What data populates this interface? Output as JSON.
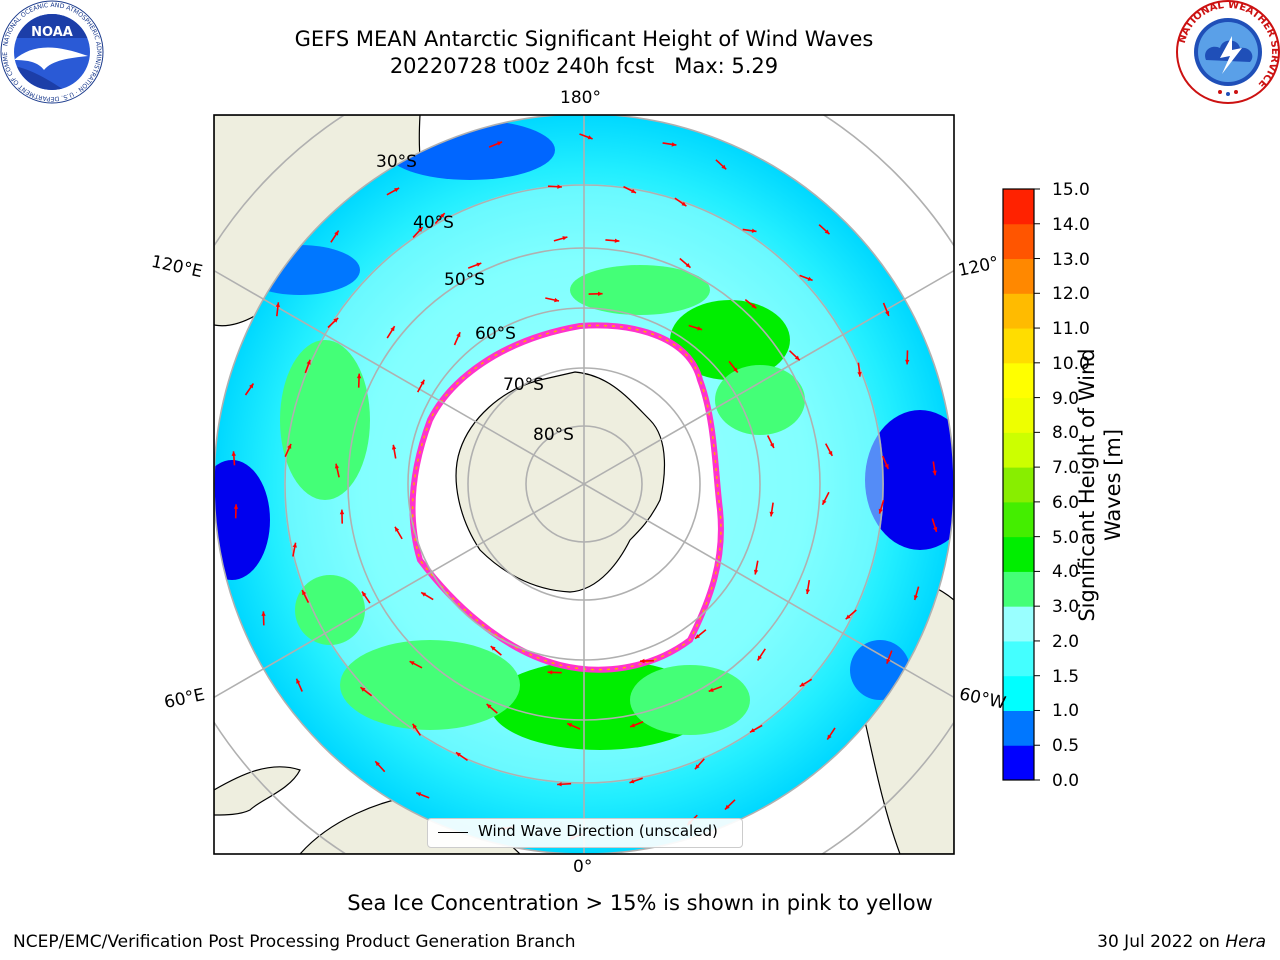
{
  "title": {
    "line1": "GEFS MEAN Antarctic Significant Height of Wind Waves",
    "line2": "20220728 t00z 240h fcst   Max: 5.29"
  },
  "logos": {
    "noaa": {
      "text": "NOAA",
      "ring_text": "NATIONAL OCEANIC AND ATMOSPHERIC ADMINISTRATION · U.S. DEPARTMENT OF COMMERCE"
    },
    "nws": {
      "ring_text": "NATIONAL WEATHER SERVICE"
    }
  },
  "map": {
    "projection": "south-polar-stereographic",
    "longitude_labels": {
      "top": "180°",
      "bottom": "0°",
      "upper_left": "120°E",
      "upper_right": "120°",
      "lower_left": "60°E",
      "lower_right": "60°W"
    },
    "latitude_labels": [
      "30°S",
      "40°S",
      "50°S",
      "60°S",
      "70°S",
      "80°S"
    ],
    "legend": "Wind Wave Direction (unscaled)",
    "land_color": "#eeeedf",
    "ice_edge_colors": [
      "#ff33cc",
      "#ff66ff",
      "#ffaa00",
      "#ffdd44"
    ],
    "arrow_color": "#ff0000"
  },
  "colorbar": {
    "label_line1": "Significant Height of Wind",
    "label_line2": "Waves [m]",
    "ticks": [
      "15.0",
      "14.0",
      "13.0",
      "12.0",
      "11.0",
      "10.0",
      "9.0",
      "8.0",
      "7.0",
      "6.0",
      "5.0",
      "4.0",
      "3.0",
      "2.0",
      "1.5",
      "1.0",
      "0.5",
      "0.0"
    ],
    "colors": [
      "#0000ff",
      "#0077ff",
      "#00ffff",
      "#44ffff",
      "#99ffff",
      "#44ff77",
      "#00ee00",
      "#44ee00",
      "#88ee00",
      "#ccff00",
      "#eeff00",
      "#ffff00",
      "#ffdd00",
      "#ffbb00",
      "#ff8800",
      "#ff5500",
      "#ff2200"
    ]
  },
  "caption": "Sea Ice Concentration > 15% is shown in pink to yellow",
  "footer": {
    "left": "NCEP/EMC/Verification Post Processing Product Generation Branch",
    "right_date": "30 Jul 2022 on ",
    "right_machine": "Hera"
  }
}
